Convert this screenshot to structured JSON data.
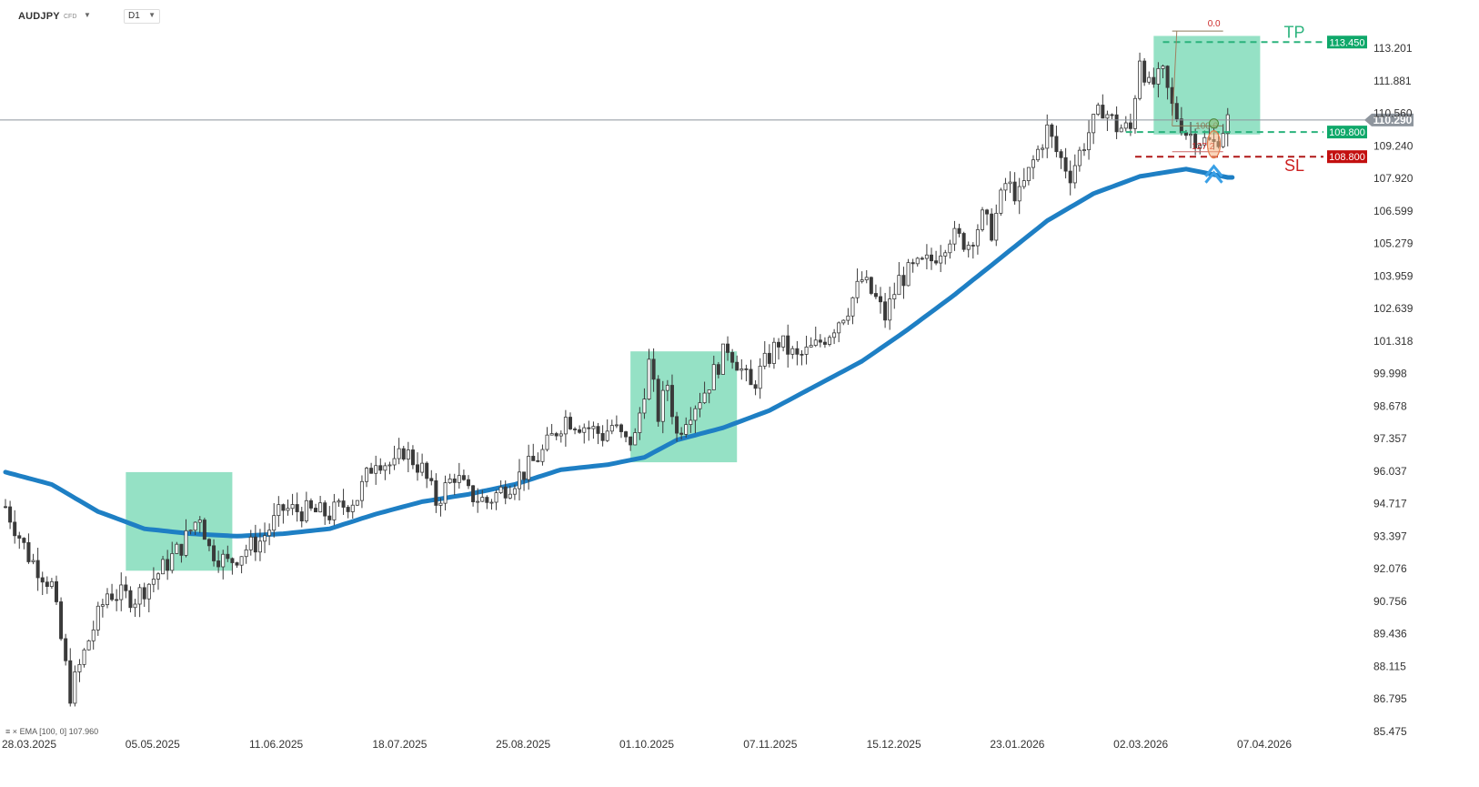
{
  "header": {
    "symbol": "AUDJPY",
    "instrument_type": "CFD",
    "timeframe": "D1"
  },
  "indicator_label": "EMA [100, 0] 107.960",
  "colors": {
    "candle": "#3a3a3a",
    "ema": "#1e7fc4",
    "zone": "#8fdfc2",
    "tp": "#2bb37d",
    "sl": "#cc1f1f",
    "current_price": "#8e959d"
  },
  "chart_data": {
    "type": "candlestick",
    "x_tick_labels": [
      "28.03.2025",
      "05.05.2025",
      "11.06.2025",
      "18.07.2025",
      "25.08.2025",
      "01.10.2025",
      "07.11.2025",
      "15.12.2025",
      "23.01.2026",
      "02.03.2026",
      "07.04.2026"
    ],
    "y_tick_labels": [
      "113.201",
      "111.881",
      "110.560",
      "109.240",
      "107.920",
      "106.599",
      "105.279",
      "103.959",
      "102.639",
      "101.318",
      "99.998",
      "98.678",
      "97.357",
      "96.037",
      "94.717",
      "93.397",
      "92.076",
      "90.756",
      "89.436",
      "88.115",
      "86.795",
      "85.475"
    ],
    "ylim": [
      85.475,
      113.201
    ],
    "current_price": "110.290",
    "levels": [
      {
        "name": "TP",
        "label": "113.450",
        "value": 113.45
      },
      {
        "name": "entry",
        "label": "109.800",
        "value": 109.8
      },
      {
        "name": "SL",
        "label": "108.800",
        "value": 108.8
      }
    ],
    "fibonacci_labels": [
      "0.0",
      "100.0",
      "127.2"
    ],
    "ema_label": "EMA [100, 0]",
    "ema_value": 107.96,
    "price_path": [
      [
        0,
        94.6
      ],
      [
        5,
        92.6
      ],
      [
        10,
        91.4
      ],
      [
        14,
        87.0
      ],
      [
        18,
        89.2
      ],
      [
        22,
        91.1
      ],
      [
        28,
        90.9
      ],
      [
        34,
        92.1
      ],
      [
        38,
        93.0
      ],
      [
        42,
        94.3
      ],
      [
        44,
        92.9
      ],
      [
        48,
        92.3
      ],
      [
        52,
        92.9
      ],
      [
        55,
        93.2
      ],
      [
        60,
        94.5
      ],
      [
        65,
        94.4
      ],
      [
        70,
        94.3
      ],
      [
        76,
        95.0
      ],
      [
        80,
        96.6
      ],
      [
        84,
        96.2
      ],
      [
        86,
        96.9
      ],
      [
        90,
        96.1
      ],
      [
        93,
        94.8
      ],
      [
        97,
        95.9
      ],
      [
        100,
        95.1
      ],
      [
        104,
        94.8
      ],
      [
        108,
        95.4
      ],
      [
        112,
        96.0
      ],
      [
        116,
        96.8
      ],
      [
        119,
        97.7
      ],
      [
        121,
        98.2
      ],
      [
        126,
        97.8
      ],
      [
        129,
        97.5
      ],
      [
        131,
        97.9
      ],
      [
        134,
        97.2
      ],
      [
        136,
        97.4
      ],
      [
        139,
        100.4
      ],
      [
        141,
        98.3
      ],
      [
        143,
        99.6
      ],
      [
        145,
        97.5
      ],
      [
        147,
        98.3
      ],
      [
        151,
        99.3
      ],
      [
        154,
        100.4
      ],
      [
        156,
        101.1
      ],
      [
        158,
        100.5
      ],
      [
        161,
        99.4
      ],
      [
        164,
        100.4
      ],
      [
        167,
        101.3
      ],
      [
        171,
        100.6
      ],
      [
        175,
        101.1
      ],
      [
        178,
        101.7
      ],
      [
        182,
        102.7
      ],
      [
        185,
        103.8
      ],
      [
        188,
        103.0
      ],
      [
        190,
        102.3
      ],
      [
        193,
        103.8
      ],
      [
        196,
        104.2
      ],
      [
        200,
        104.6
      ],
      [
        204,
        105.6
      ],
      [
        208,
        105.3
      ],
      [
        211,
        106.3
      ],
      [
        213,
        105.8
      ],
      [
        216,
        107.7
      ],
      [
        219,
        107.2
      ],
      [
        222,
        108.6
      ],
      [
        225,
        109.9
      ],
      [
        227,
        109.0
      ],
      [
        230,
        108.1
      ],
      [
        234,
        109.8
      ],
      [
        237,
        110.8
      ],
      [
        240,
        110.0
      ],
      [
        243,
        109.9
      ],
      [
        245,
        112.9
      ],
      [
        247,
        111.6
      ],
      [
        250,
        112.1
      ],
      [
        252,
        110.8
      ],
      [
        255,
        109.8
      ],
      [
        258,
        109.5
      ],
      [
        261,
        109.3
      ],
      [
        264,
        110.29
      ]
    ],
    "ema_path": [
      [
        0,
        96.0
      ],
      [
        10,
        95.5
      ],
      [
        20,
        94.4
      ],
      [
        30,
        93.7
      ],
      [
        40,
        93.5
      ],
      [
        50,
        93.4
      ],
      [
        60,
        93.5
      ],
      [
        70,
        93.7
      ],
      [
        80,
        94.3
      ],
      [
        90,
        94.8
      ],
      [
        100,
        95.1
      ],
      [
        110,
        95.5
      ],
      [
        120,
        96.1
      ],
      [
        130,
        96.3
      ],
      [
        138,
        96.6
      ],
      [
        145,
        97.3
      ],
      [
        155,
        97.8
      ],
      [
        165,
        98.5
      ],
      [
        175,
        99.5
      ],
      [
        185,
        100.5
      ],
      [
        195,
        101.8
      ],
      [
        205,
        103.2
      ],
      [
        215,
        104.7
      ],
      [
        225,
        106.2
      ],
      [
        235,
        107.3
      ],
      [
        245,
        108.0
      ],
      [
        255,
        108.3
      ],
      [
        264,
        107.96
      ]
    ],
    "zones": [
      {
        "from": 26,
        "to": 49,
        "y_low": 92.0,
        "y_high": 96.0
      },
      {
        "from": 135,
        "to": 158,
        "y_low": 96.4,
        "y_high": 100.9
      },
      {
        "from": 248,
        "to": 271,
        "y_low": 109.7,
        "y_high": 113.7
      }
    ],
    "fib": {
      "top": 113.9,
      "mid": 110.05,
      "bottom": 109.0,
      "from": 252,
      "to": 263
    }
  }
}
